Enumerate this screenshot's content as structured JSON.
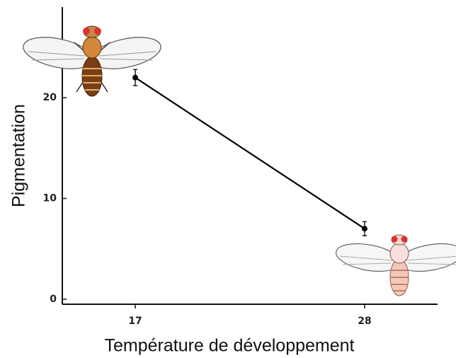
{
  "chart_data": {
    "type": "line",
    "x_label": "Température de développement",
    "y_label": "Pigmentation",
    "x": [
      17,
      28
    ],
    "series": [
      {
        "color": "#000000",
        "values": [
          22,
          7
        ],
        "errors": [
          0.8,
          0.7
        ]
      }
    ],
    "xlim": [
      13.5,
      31.5
    ],
    "xticks": [
      17,
      28
    ],
    "ylim": [
      -0.5,
      29
    ],
    "yticks": [
      0,
      10,
      20
    ],
    "grid": false
  }
}
